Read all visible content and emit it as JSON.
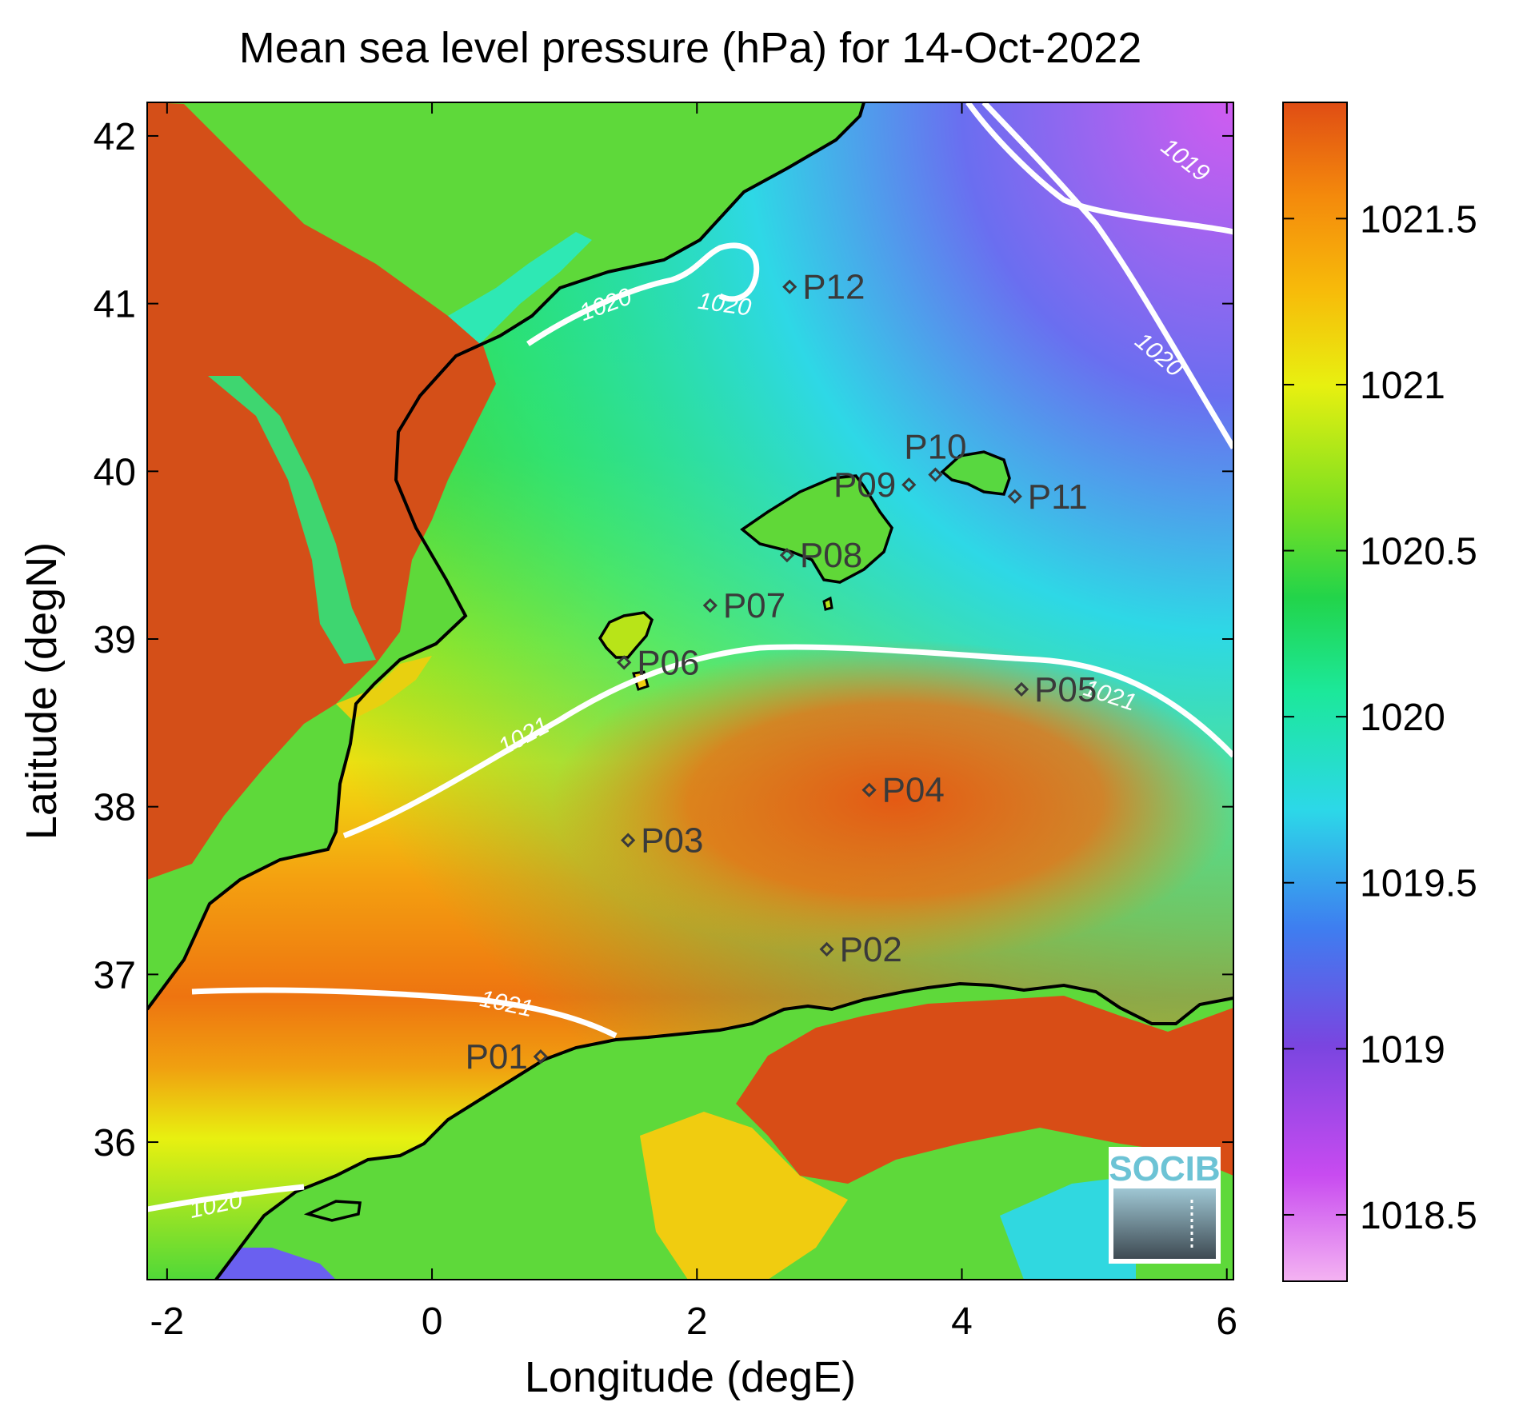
{
  "title": "Mean sea level pressure (hPa) for 14-Oct-2022",
  "x_axis": {
    "label": "Longitude (degE)",
    "range": [
      -2.15,
      6.05
    ],
    "ticks": [
      {
        "v": -2,
        "t": "-2"
      },
      {
        "v": 0,
        "t": "0"
      },
      {
        "v": 2,
        "t": "2"
      },
      {
        "v": 4,
        "t": "4"
      },
      {
        "v": 6,
        "t": "6"
      }
    ]
  },
  "y_axis": {
    "label": "Latitude (degN)",
    "range": [
      35.18,
      42.2
    ],
    "ticks": [
      {
        "v": 36,
        "t": "36"
      },
      {
        "v": 37,
        "t": "37"
      },
      {
        "v": 38,
        "t": "38"
      },
      {
        "v": 39,
        "t": "39"
      },
      {
        "v": 40,
        "t": "40"
      },
      {
        "v": 41,
        "t": "41"
      },
      {
        "v": 42,
        "t": "42"
      }
    ]
  },
  "colorbar": {
    "range": [
      1018.3,
      1021.85
    ],
    "ticks": [
      {
        "v": 1018.5,
        "t": "1018.5"
      },
      {
        "v": 1019,
        "t": "1019"
      },
      {
        "v": 1019.5,
        "t": "1019.5"
      },
      {
        "v": 1020,
        "t": "1020"
      },
      {
        "v": 1020.5,
        "t": "1020.5"
      },
      {
        "v": 1021,
        "t": "1021"
      },
      {
        "v": 1021.5,
        "t": "1021.5"
      }
    ],
    "colors": [
      "#f4b3f2",
      "#c84bf0",
      "#7a45e0",
      "#3e7ef0",
      "#2cd8e8",
      "#1ce89a",
      "#22d44a",
      "#7ee020",
      "#e8f010",
      "#f7bb0a",
      "#f48a0c",
      "#e04d14"
    ]
  },
  "stations": [
    {
      "name": "P01",
      "lon": 0.82,
      "lat": 36.51,
      "label_side": "left"
    },
    {
      "name": "P02",
      "lon": 2.98,
      "lat": 37.15,
      "label_side": "right"
    },
    {
      "name": "P03",
      "lon": 1.48,
      "lat": 37.8,
      "label_side": "right"
    },
    {
      "name": "P04",
      "lon": 3.3,
      "lat": 38.1,
      "label_side": "right"
    },
    {
      "name": "P05",
      "lon": 4.45,
      "lat": 38.7,
      "label_side": "right"
    },
    {
      "name": "P06",
      "lon": 1.45,
      "lat": 38.86,
      "label_side": "right"
    },
    {
      "name": "P07",
      "lon": 2.1,
      "lat": 39.2,
      "label_side": "right"
    },
    {
      "name": "P08",
      "lon": 2.68,
      "lat": 39.5,
      "label_side": "right"
    },
    {
      "name": "P09",
      "lon": 3.6,
      "lat": 39.92,
      "label_side": "left"
    },
    {
      "name": "P10",
      "lon": 3.8,
      "lat": 39.98,
      "label_side": "above"
    },
    {
      "name": "P11",
      "lon": 4.4,
      "lat": 39.85,
      "label_side": "right"
    },
    {
      "name": "P12",
      "lon": 2.7,
      "lat": 41.1,
      "label_side": "right"
    }
  ],
  "contour_labels": [
    {
      "text": "1019",
      "lon": 5.65,
      "lat": 41.82,
      "rot": 38
    },
    {
      "text": "1020",
      "lon": 5.45,
      "lat": 40.66,
      "rot": 40
    },
    {
      "text": "1020",
      "lon": 1.33,
      "lat": 40.95,
      "rot": -20
    },
    {
      "text": "1020",
      "lon": 2.2,
      "lat": 40.95,
      "rot": 8
    },
    {
      "text": "1020",
      "lon": -1.62,
      "lat": 35.58,
      "rot": -12
    },
    {
      "text": "1021",
      "lon": 0.72,
      "lat": 38.38,
      "rot": -28
    },
    {
      "text": "1021",
      "lon": 0.55,
      "lat": 36.78,
      "rot": 12
    },
    {
      "text": "1021",
      "lon": 5.1,
      "lat": 38.62,
      "rot": 18
    }
  ],
  "logo_text": "SOCIB"
}
